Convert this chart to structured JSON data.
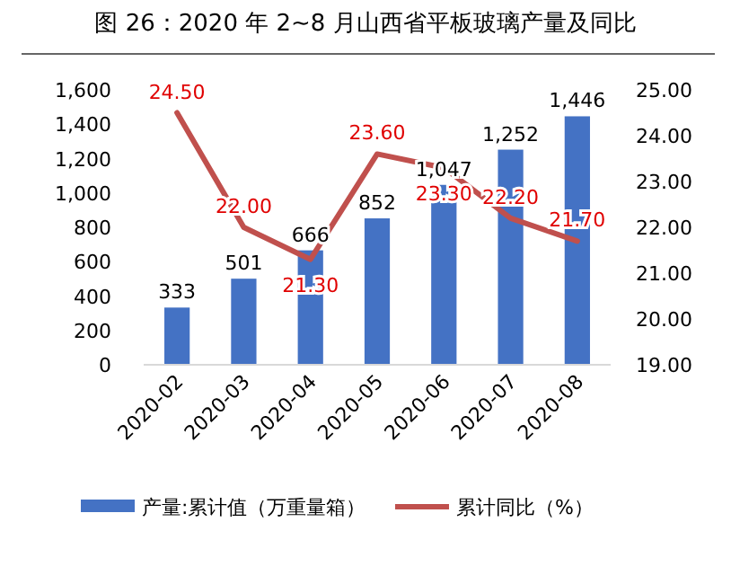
{
  "chart_data": {
    "type": "bar",
    "title": "图 26：2020 年 2~8 月山西省平板玻璃产量及同比",
    "categories": [
      "2020-02",
      "2020-03",
      "2020-04",
      "2020-05",
      "2020-06",
      "2020-07",
      "2020-08"
    ],
    "series": [
      {
        "name": "产量:累计值（万重量箱）",
        "color": "#4472c4",
        "values": [
          333,
          501,
          666,
          852,
          1047,
          1252,
          1446
        ],
        "value_labels": [
          "333",
          "501",
          "666",
          "852",
          "1,047",
          "1,252",
          "1,446"
        ]
      },
      {
        "name": "累计同比（%）",
        "type": "line",
        "axis": "y2",
        "color": "#c0504d",
        "values": [
          24.5,
          22.0,
          21.3,
          23.6,
          23.3,
          22.2,
          21.7
        ],
        "value_labels": [
          "24.50",
          "22.00",
          "21.30",
          "23.60",
          "23.30",
          "22.20",
          "21.70"
        ]
      }
    ],
    "ylim": [
      0,
      1600
    ],
    "yticks": [
      {
        "value": 0,
        "label": "0"
      },
      {
        "value": 200,
        "label": "200"
      },
      {
        "value": 400,
        "label": "400"
      },
      {
        "value": 600,
        "label": "600"
      },
      {
        "value": 800,
        "label": "800"
      },
      {
        "value": 1000,
        "label": "1,000"
      },
      {
        "value": 1200,
        "label": "1,200"
      },
      {
        "value": 1400,
        "label": "1,400"
      },
      {
        "value": 1600,
        "label": "1,600"
      }
    ],
    "y2lim": [
      19,
      25
    ],
    "y2ticks": [
      {
        "value": 19,
        "label": "19.00"
      },
      {
        "value": 20,
        "label": "20.00"
      },
      {
        "value": 21,
        "label": "21.00"
      },
      {
        "value": 22,
        "label": "22.00"
      },
      {
        "value": 23,
        "label": "23.00"
      },
      {
        "value": 24,
        "label": "24.00"
      },
      {
        "value": 25,
        "label": "25.00"
      }
    ],
    "legend": "bottom",
    "marker": "none"
  }
}
